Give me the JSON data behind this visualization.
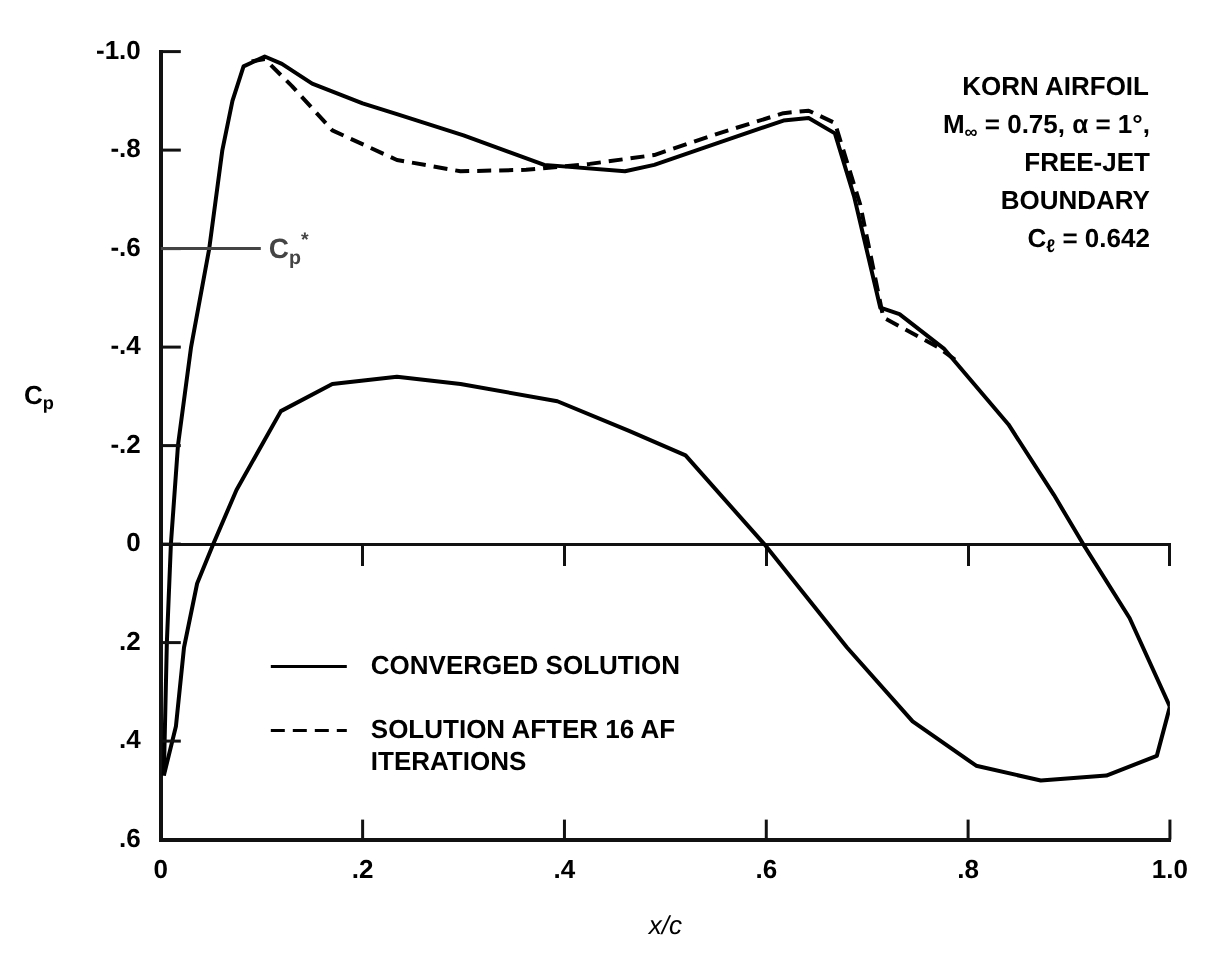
{
  "chart_data": {
    "type": "line",
    "xlabel": "x/c",
    "ylabel": "C$_{p}$",
    "xlim": [
      0,
      1.0
    ],
    "xticks": [
      0,
      {
        "value": 0.2,
        "label": ".2"
      },
      {
        "value": 0.4,
        "label": ".4"
      },
      {
        "value": 0.6,
        "label": ".6"
      },
      {
        "value": 0.8,
        "label": ".8"
      },
      {
        "value": 1.0,
        "label": "1.0"
      }
    ],
    "ylim": [
      0.6,
      -1.0
    ],
    "yticks": [
      {
        "value": -1.0,
        "label": "-1.0"
      },
      {
        "value": -0.8,
        "label": "-.8"
      },
      {
        "value": -0.6,
        "label": "-.6"
      },
      {
        "value": -0.4,
        "label": "-.4"
      },
      {
        "value": -0.2,
        "label": "-.2"
      },
      0,
      {
        "value": 0.2,
        "label": ".2"
      },
      {
        "value": 0.4,
        "label": ".4"
      },
      {
        "value": 0.6,
        "label": ".6"
      }
    ],
    "grid": false,
    "legend": "bottom left",
    "series": [
      {
        "name": "CONVERGED SOLUTION",
        "color": "#000000",
        "line_style": "solid",
        "x": [
          0.003,
          0.006,
          0.01,
          0.017,
          0.03,
          0.048,
          0.061,
          0.071,
          0.082,
          0.103,
          0.12,
          0.15,
          0.2,
          0.234,
          0.3,
          0.38,
          0.46,
          0.489,
          0.553,
          0.617,
          0.642,
          0.668,
          0.687,
          0.713,
          0.732,
          0.776,
          0.84,
          0.885,
          0.914,
          0.96,
          1.0
        ],
        "values": [
          0.47,
          0.2,
          0,
          -0.2,
          -0.4,
          -0.6,
          -0.8,
          -0.9,
          -0.97,
          -0.99,
          -0.975,
          -0.935,
          -0.895,
          -0.873,
          -0.83,
          -0.77,
          -0.757,
          -0.77,
          -0.815,
          -0.86,
          -0.865,
          -0.834,
          -0.706,
          -0.48,
          -0.467,
          -0.397,
          -0.243,
          -0.1,
          0,
          0.15,
          0.33
        ]
      },
      {
        "color": "#000000",
        "line_style": "solid",
        "x": [
          0.003,
          0.015,
          0.023,
          0.036,
          0.052,
          0.075,
          0.119,
          0.17,
          0.234,
          0.297,
          0.393,
          0.464,
          0.52,
          0.598,
          0.68,
          0.745,
          0.808,
          0.872,
          0.937,
          0.987,
          1.0
        ],
        "values": [
          0.47,
          0.37,
          0.21,
          0.08,
          0,
          -0.11,
          -0.27,
          -0.325,
          -0.34,
          -0.325,
          -0.29,
          -0.23,
          -0.18,
          0,
          0.21,
          0.36,
          0.45,
          0.48,
          0.47,
          0.43,
          0.33
        ]
      },
      {
        "name": "SOLUTION AFTER 16 AF ITERATIONS",
        "color": "#000000",
        "line_style": "dashed",
        "x": [
          0.09,
          0.103,
          0.13,
          0.17,
          0.234,
          0.297,
          0.362,
          0.425,
          0.489,
          0.553,
          0.617,
          0.642,
          0.668,
          0.693,
          0.716,
          0.77,
          0.79
        ],
        "values": [
          -0.98,
          -0.985,
          -0.93,
          -0.84,
          -0.78,
          -0.757,
          -0.76,
          -0.772,
          -0.79,
          -0.834,
          -0.875,
          -0.88,
          -0.855,
          -0.69,
          -0.46,
          -0.4,
          -0.37
        ]
      }
    ],
    "ref_lines": [
      {
        "axis": "y",
        "value": -0.6,
        "label": "C$_{p}$$^{*}$",
        "color": "#444444"
      },
      {
        "axis": "y",
        "value": 0,
        "color": "#111111"
      }
    ],
    "annotations": [
      "KORN AIRFOIL",
      "M$_{∞}$ = 0.75, α = 1°,",
      "FREE-JET",
      "BOUNDARY",
      "C$_{ℓ}$ = 0.642"
    ]
  }
}
